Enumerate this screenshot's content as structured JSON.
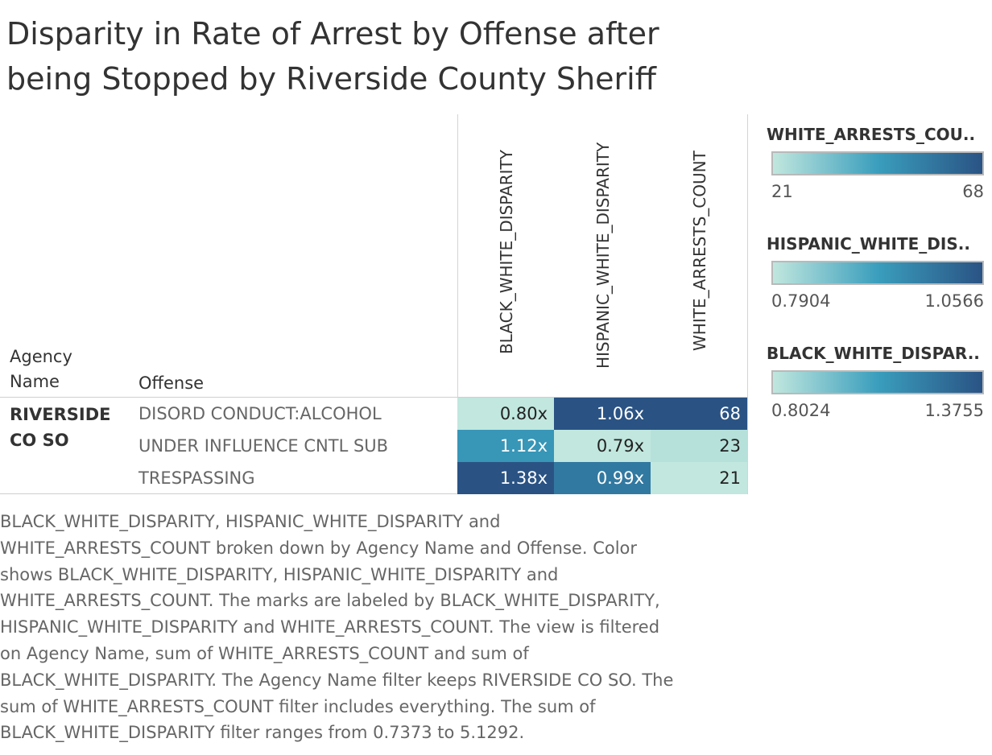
{
  "title_lines": [
    "Disparity in Rate of Arrest by Offense after",
    "being Stopped by Riverside County Sheriff"
  ],
  "row_headers": {
    "agency_line1": "Agency",
    "agency_line2": "Name",
    "offense": "Offense"
  },
  "agency": {
    "line1": "RIVERSIDE",
    "line2": "CO SO"
  },
  "chart_data": {
    "type": "table",
    "title": "Disparity in Rate of Arrest by Offense after being Stopped by Riverside County Sheriff",
    "columns": [
      "BLACK_WHITE_DISPARITY",
      "HISPANIC_WHITE_DISPARITY",
      "WHITE_ARRESTS_COUNT"
    ],
    "rows": [
      {
        "agency": "RIVERSIDE CO SO",
        "offense": "DISORD CONDUCT:ALCOHOL",
        "values": [
          0.8,
          1.06,
          68
        ],
        "labels": [
          "0.80x",
          "1.06x",
          "68"
        ]
      },
      {
        "agency": "RIVERSIDE CO SO",
        "offense": "UNDER INFLUENCE CNTL SUB",
        "values": [
          1.12,
          0.79,
          23
        ],
        "labels": [
          "1.12x",
          "0.79x",
          "23"
        ]
      },
      {
        "agency": "RIVERSIDE CO SO",
        "offense": "TRESPASSING",
        "values": [
          1.38,
          0.99,
          21
        ],
        "labels": [
          "1.38x",
          "0.99x",
          "21"
        ]
      }
    ],
    "color_ranges": {
      "BLACK_WHITE_DISPARITY": [
        0.8024,
        1.3755
      ],
      "HISPANIC_WHITE_DISPARITY": [
        0.7904,
        1.0566
      ],
      "WHITE_ARRESTS_COUNT": [
        21,
        68
      ]
    },
    "color_scale": [
      "#c1e7de",
      "#3a9ebd",
      "#2a5384"
    ]
  },
  "legends": [
    {
      "title": "WHITE_ARRESTS_COU..",
      "min": "21",
      "max": "68"
    },
    {
      "title": "HISPANIC_WHITE_DIS..",
      "min": "0.7904",
      "max": "1.0566"
    },
    {
      "title": "BLACK_WHITE_DISPAR..",
      "min": "0.8024",
      "max": "1.3755"
    }
  ],
  "caption_lines": [
    "BLACK_WHITE_DISPARITY, HISPANIC_WHITE_DISPARITY and",
    "WHITE_ARRESTS_COUNT broken down by Agency Name and Offense.  Color",
    "shows BLACK_WHITE_DISPARITY, HISPANIC_WHITE_DISPARITY and",
    "WHITE_ARRESTS_COUNT.  The marks are labeled by BLACK_WHITE_DISPARITY,",
    "HISPANIC_WHITE_DISPARITY and WHITE_ARRESTS_COUNT. The view is filtered",
    "on Agency Name, sum of WHITE_ARRESTS_COUNT and sum of",
    "BLACK_WHITE_DISPARITY. The Agency Name filter keeps RIVERSIDE CO SO. The",
    "sum of WHITE_ARRESTS_COUNT filter includes everything. The sum of",
    "BLACK_WHITE_DISPARITY filter ranges from 0.7373 to 5.1292."
  ]
}
